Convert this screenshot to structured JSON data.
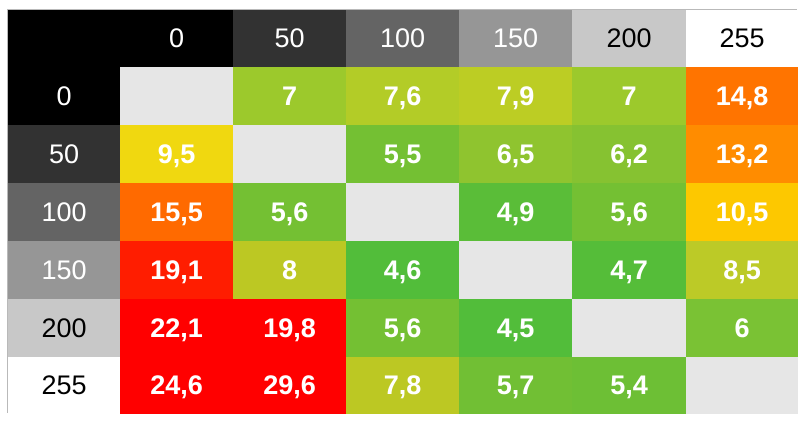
{
  "chart_data": {
    "type": "heatmap",
    "column_headers": [
      "0",
      "50",
      "100",
      "150",
      "200",
      "255"
    ],
    "row_headers": [
      "0",
      "50",
      "100",
      "150",
      "200",
      "255"
    ],
    "header_colors": [
      "#000000",
      "#323232",
      "#646464",
      "#969696",
      "#c8c8c8",
      "#ffffff"
    ],
    "header_text_colors": [
      "#ffffff",
      "#ffffff",
      "#ffffff",
      "#ffffff",
      "#000000",
      "#000000"
    ],
    "corner_color": "#000000",
    "diagonal_color": "#e6e6e6",
    "values": [
      [
        null,
        "7",
        "7,6",
        "7,9",
        "7",
        "14,8"
      ],
      [
        "9,5",
        null,
        "5,5",
        "6,5",
        "6,2",
        "13,2"
      ],
      [
        "15,5",
        "5,6",
        null,
        "4,9",
        "5,6",
        "10,5"
      ],
      [
        "19,1",
        "8",
        "4,6",
        null,
        "4,7",
        "8,5"
      ],
      [
        "22,1",
        "19,8",
        "5,6",
        "4,5",
        null,
        "6"
      ],
      [
        "24,6",
        "29,6",
        "7,8",
        "5,7",
        "5,4",
        null
      ]
    ],
    "cell_colors": [
      [
        "#e6e6e6",
        "#9cc92c",
        "#b3cc27",
        "#bccd24",
        "#9cc92c",
        "#ff7400"
      ],
      [
        "#f0d810",
        "#e6e6e6",
        "#74c033",
        "#8fc42f",
        "#86c231",
        "#ff8c00"
      ],
      [
        "#ff6a00",
        "#74c033",
        "#e6e6e6",
        "#5abd38",
        "#74c033",
        "#fdc800"
      ],
      [
        "#ff1d00",
        "#bcc823",
        "#52bd3a",
        "#e6e6e6",
        "#55bd39",
        "#bcca27"
      ],
      [
        "#ff0000",
        "#ff0000",
        "#74c033",
        "#52bd3a",
        "#e6e6e6",
        "#7ac234"
      ],
      [
        "#ff0000",
        "#ff0000",
        "#bcc823",
        "#71bf34",
        "#6dbf35",
        "#e6e6e6"
      ]
    ]
  }
}
